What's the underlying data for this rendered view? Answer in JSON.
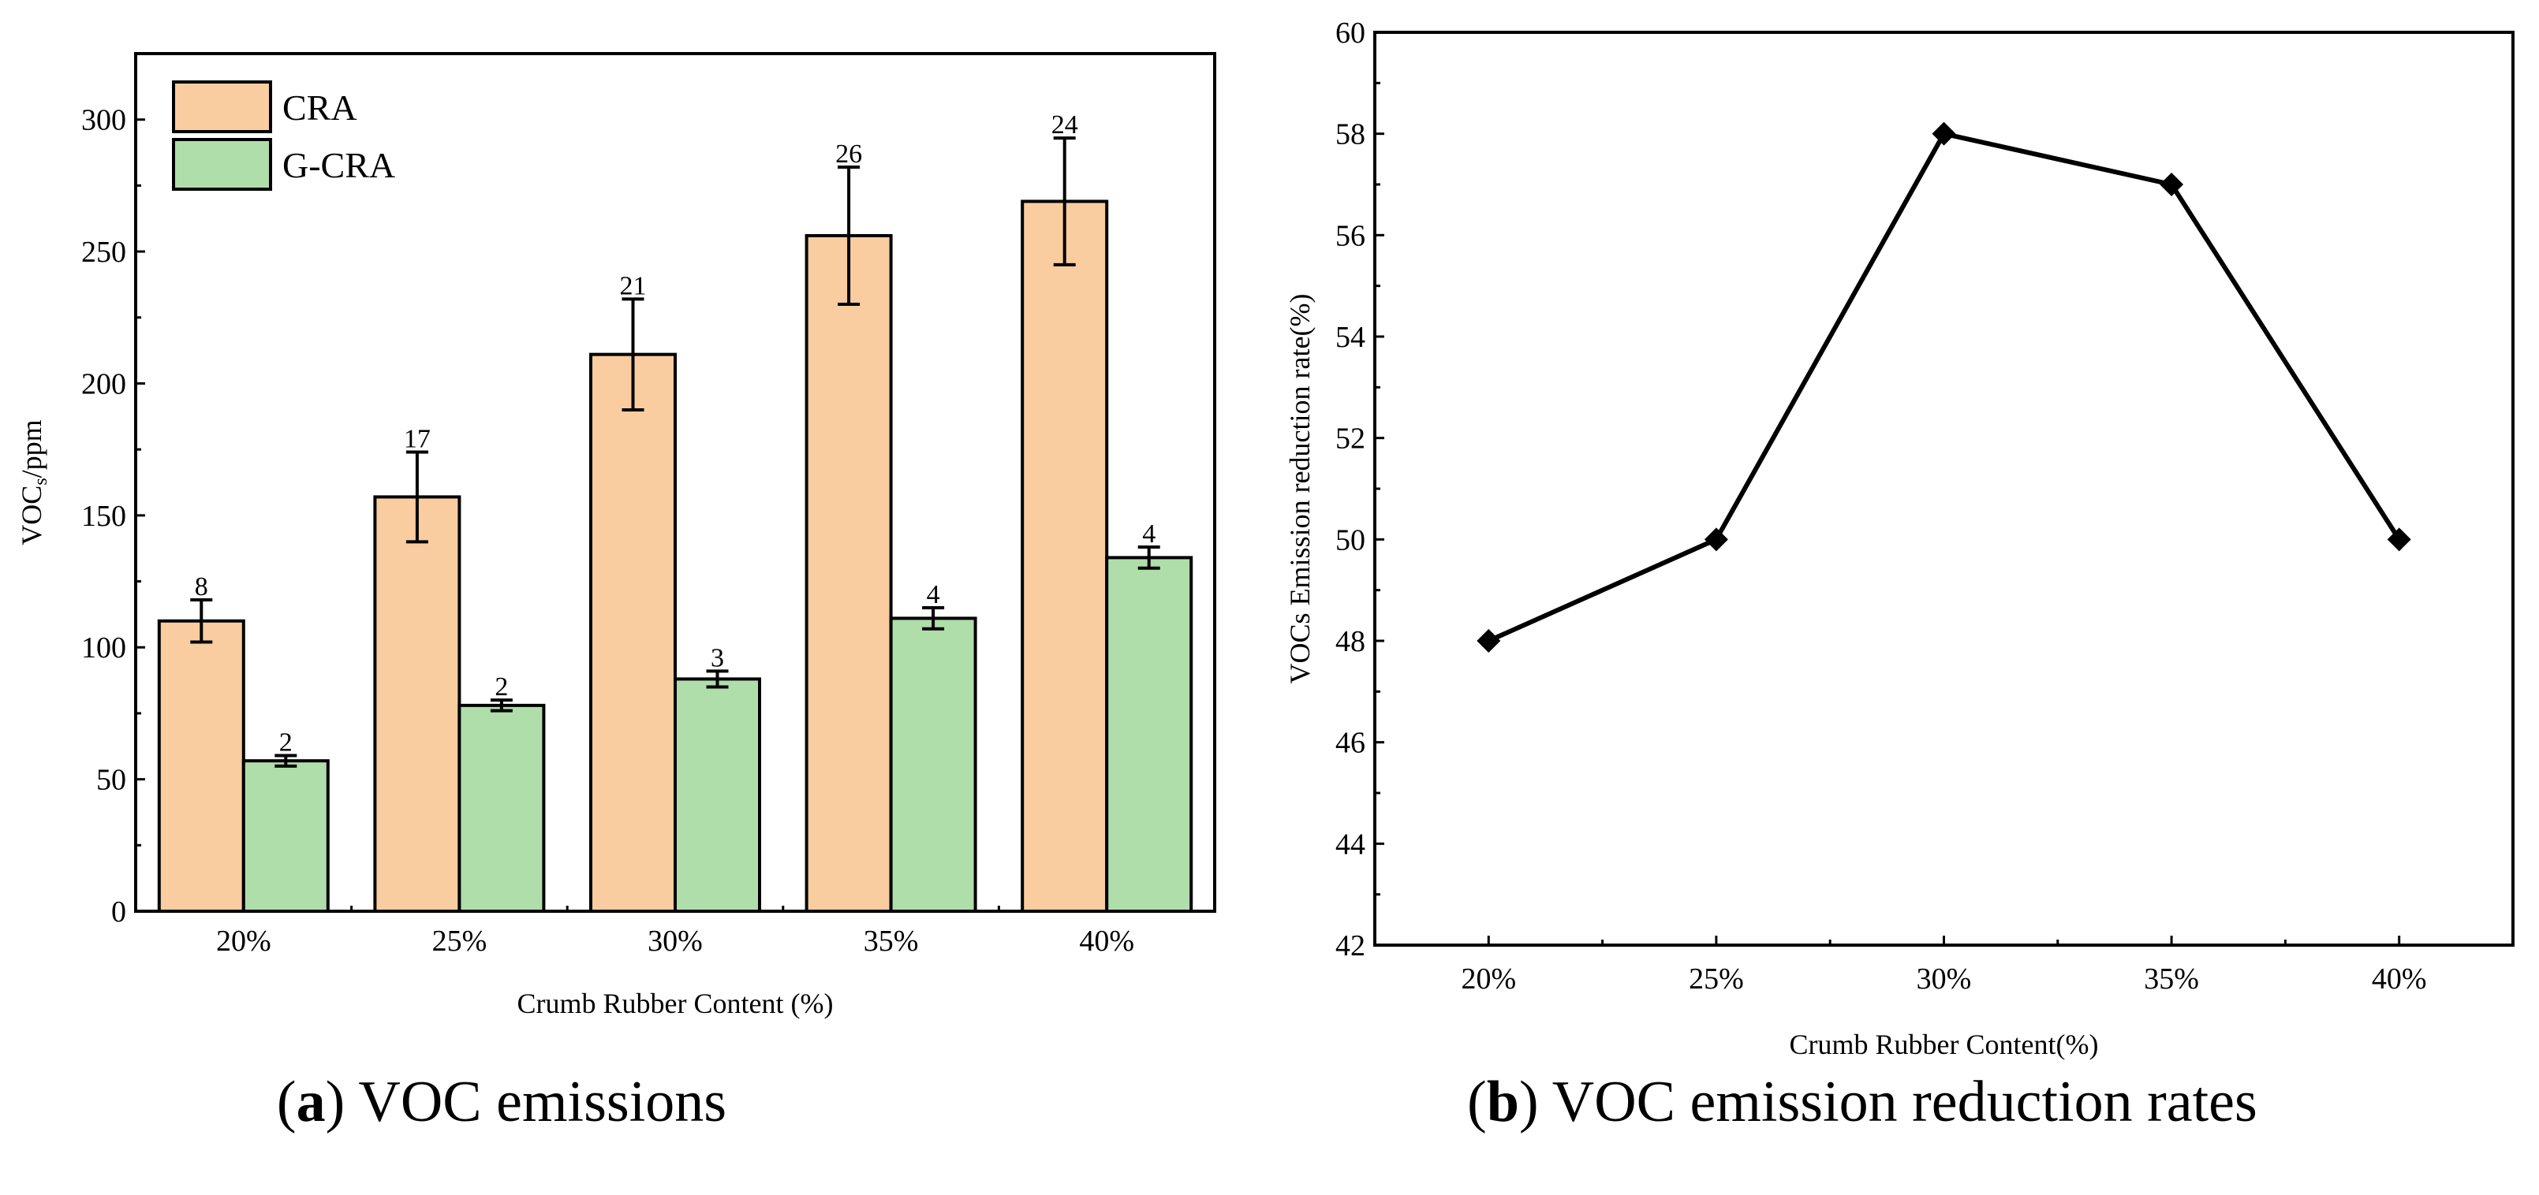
{
  "chart_data": [
    {
      "type": "bar",
      "title": "",
      "xlabel": "Crumb Rubber Content (%)",
      "ylabel": {
        "main": "VOC",
        "sub": "s",
        "rest": "/ppm"
      },
      "categories": [
        "20%",
        "25%",
        "30%",
        "35%",
        "40%"
      ],
      "ylim": [
        0,
        325
      ],
      "yticks": [
        0,
        50,
        100,
        150,
        200,
        250,
        300
      ],
      "legend_position": "top-left",
      "series": [
        {
          "name": "CRA",
          "color": "#F9CDA0",
          "values": [
            110,
            157,
            211,
            256,
            269
          ],
          "errors": [
            8,
            17,
            21,
            26,
            24
          ],
          "error_labels": [
            "8",
            "17",
            "21",
            "26",
            "24"
          ]
        },
        {
          "name": "G-CRA",
          "color": "#AFDEAB",
          "values": [
            57,
            78,
            88,
            111,
            134
          ],
          "errors": [
            2,
            2,
            3,
            4,
            4
          ],
          "error_labels": [
            "2",
            "2",
            "3",
            "4",
            "4"
          ]
        }
      ],
      "caption": {
        "letter": "a",
        "text": " VOC emissions"
      }
    },
    {
      "type": "line",
      "title": "",
      "xlabel": "Crumb Rubber Content(%)",
      "ylabel": "VOCs Emission reduction rate(%)",
      "categories": [
        "20%",
        "25%",
        "30%",
        "35%",
        "40%"
      ],
      "x": [
        20,
        25,
        30,
        35,
        40
      ],
      "xlim": [
        17.5,
        42.5
      ],
      "ylim": [
        42,
        60
      ],
      "yticks": [
        "42",
        "44",
        "46",
        "48",
        "50",
        "52",
        "54",
        "56",
        "58",
        "60"
      ],
      "series": [
        {
          "name": "VOCs emission reduction rate",
          "color": "#000000",
          "marker": "diamond",
          "values": [
            48,
            50,
            58,
            57,
            50
          ]
        }
      ],
      "caption": {
        "letter": "b",
        "text": " VOC emission reduction rates"
      }
    }
  ]
}
